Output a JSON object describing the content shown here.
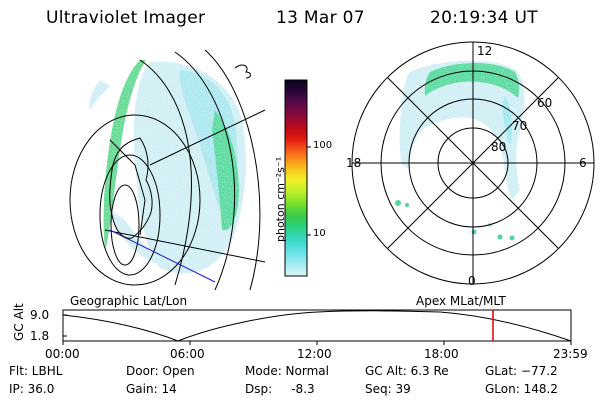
{
  "header": {
    "instrument": "Ultraviolet Imager",
    "date": "13 Mar 07",
    "time": "20:19:34 UT"
  },
  "colorbar": {
    "unit_label": "photon cm⁻²s⁻¹",
    "ticks": [
      "100",
      "10"
    ],
    "colors": [
      "#0b0420",
      "#2a0638",
      "#5a0a4a",
      "#8a0a3a",
      "#b80a1a",
      "#e01a10",
      "#f4501a",
      "#f88a1a",
      "#fac81e",
      "#f2f02a",
      "#bef02a",
      "#78e02a",
      "#3ccc46",
      "#2ad080",
      "#36d8c0",
      "#60e0e4",
      "#9aeaf0",
      "#c4f0f4",
      "#dcf4f6"
    ]
  },
  "polar_plot": {
    "mlt_labels": {
      "top": "12",
      "left": "18",
      "right": "6",
      "bottom": "0"
    },
    "lat_labels": [
      "60",
      "70",
      "80"
    ]
  },
  "map_panel": {
    "left_caption": "Geographic Lat/Lon",
    "right_caption": "Apex MLat/MLT"
  },
  "timeline": {
    "ylabel": "GC Alt",
    "yticks": [
      "9.0",
      "1.8"
    ],
    "xticks": [
      "00:00",
      "06:00",
      "12:00",
      "18:00",
      "23:59"
    ],
    "marker_color": "#e00000"
  },
  "footer": {
    "row1": {
      "filter": "Flt: LBHL",
      "door": "Door: Open",
      "mode": "Mode: Normal",
      "gc_alt": "GC Alt: 6.3 Re",
      "glat": "GLat: −77.2"
    },
    "row2": {
      "ip": "IP: 36.0",
      "gain": "Gain: 14",
      "dsp": "Dsp:     -8.3",
      "seq": "Seq: 39",
      "glon": "GLon: 148.2"
    }
  }
}
